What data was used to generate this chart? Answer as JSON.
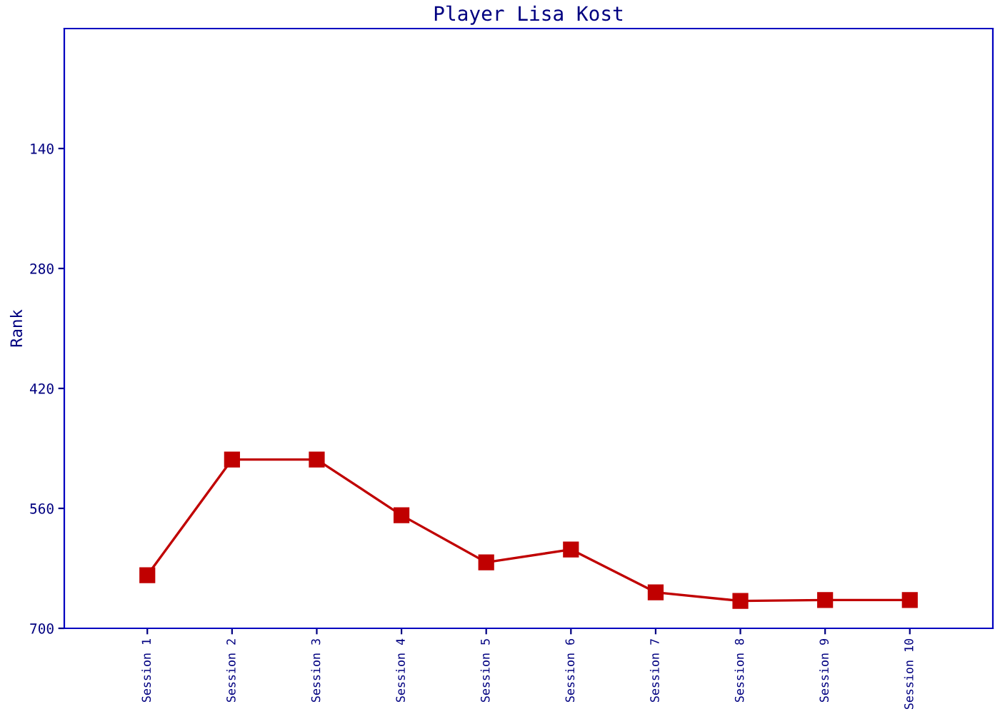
{
  "chart_data": {
    "type": "line",
    "title": "Player Lisa Kost",
    "ylabel": "Rank",
    "categories": [
      "Session 1",
      "Session 2",
      "Session 3",
      "Session 4",
      "Session 5",
      "Session 6",
      "Session 7",
      "Session 8",
      "Session 9",
      "Session 10"
    ],
    "series": [
      {
        "color": "#c00000",
        "values": [
          638,
          503,
          503,
          568,
          623,
          608,
          658,
          668,
          667,
          667
        ]
      }
    ],
    "ylim": [
      700,
      0
    ],
    "yticks": [
      140,
      280,
      420,
      560,
      700
    ],
    "marker": "square",
    "line_style": "solid",
    "grid": false,
    "legend": false
  }
}
